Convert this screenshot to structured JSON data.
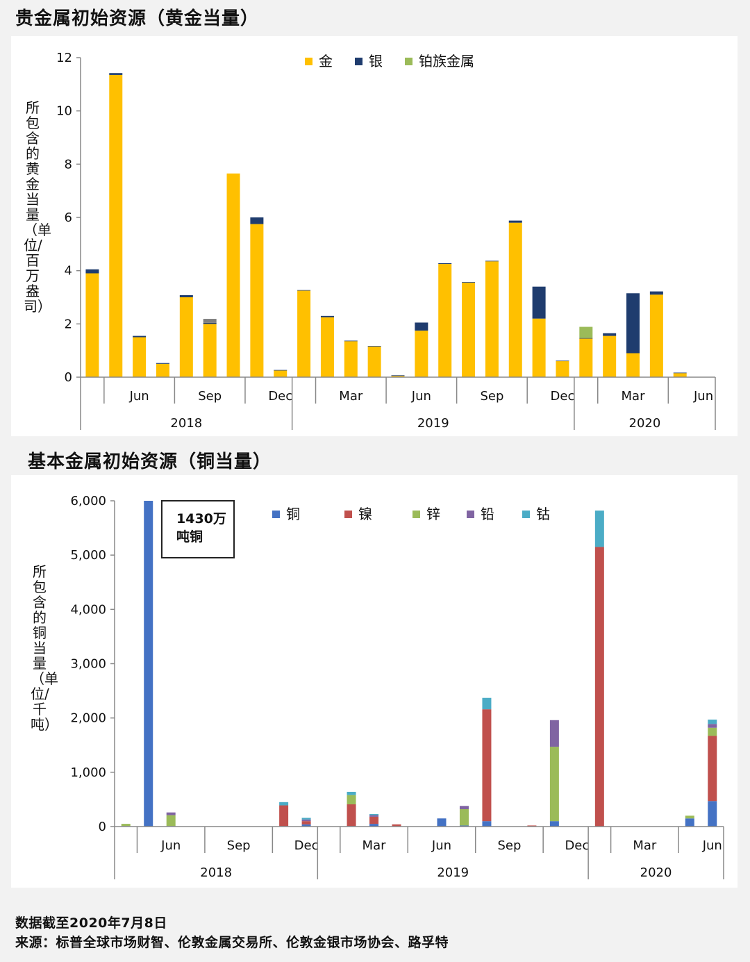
{
  "title_precious": "贵金属初始资源（黄金当量）",
  "title_base": "基本金属初始资源（铜当量）",
  "footer_date": "数据截至2020年7月8日",
  "footer_source": "来源：标普全球市场财智、伦敦金属交易所、伦敦金银市场协会、路孚特",
  "annotation": {
    "line1": "1430万",
    "line2": "吨铜"
  },
  "chart_data": [
    {
      "type": "bar",
      "stacked": true,
      "title": "贵金属初始资源（黄金当量）",
      "ylabel": "所包含的黄金当量（单位/百万盎司）",
      "ylim": [
        0,
        12
      ],
      "yticks": [
        0,
        2,
        4,
        6,
        8,
        10,
        12
      ],
      "grid": false,
      "legend_position": "top",
      "month_labels": [
        "Jun",
        "Sep",
        "Dec",
        "Mar",
        "Jun",
        "Sep",
        "Dec",
        "Mar",
        "Jun"
      ],
      "year_labels": [
        "2018",
        "2019",
        "2020"
      ],
      "categories": [
        "2018-04",
        "2018-05",
        "2018-06",
        "2018-07",
        "2018-08",
        "2018-09",
        "2018-10",
        "2018-11",
        "2018-12",
        "2019-01",
        "2019-02",
        "2019-03",
        "2019-04",
        "2019-05",
        "2019-06",
        "2019-07",
        "2019-08",
        "2019-09",
        "2019-10",
        "2019-11",
        "2019-12",
        "2020-01",
        "2020-02",
        "2020-03",
        "2020-04",
        "2020-05",
        "2020-06"
      ],
      "series": [
        {
          "name": "金",
          "color": "#FFC000",
          "values": [
            3.9,
            11.35,
            1.5,
            0.5,
            3.0,
            2.0,
            7.65,
            5.75,
            0.25,
            3.25,
            2.25,
            1.35,
            1.15,
            0.05,
            1.75,
            4.25,
            3.55,
            4.35,
            5.8,
            2.2,
            0.6,
            1.45,
            1.55,
            0.9,
            3.1,
            0.15,
            0
          ]
        },
        {
          "name": "银",
          "color": "#1F3C6E",
          "values": [
            0.15,
            0.07,
            0.05,
            0.03,
            0.08,
            0.04,
            0,
            0.25,
            0.02,
            0.02,
            0.05,
            0.02,
            0.02,
            0.02,
            0.3,
            0.03,
            0.02,
            0.02,
            0.08,
            1.2,
            0.02,
            0.02,
            0.1,
            2.25,
            0.12,
            0.02,
            0
          ]
        },
        {
          "name": "铂族金属",
          "color": "#9BBB59",
          "values": [
            0,
            0,
            0,
            0,
            0,
            0,
            0,
            0,
            0,
            0,
            0,
            0,
            0,
            0,
            0,
            0,
            0,
            0,
            0,
            0,
            0,
            0.42,
            0,
            0,
            0,
            0,
            0
          ]
        },
        {
          "name": "",
          "color": "#7F7F7F",
          "values": [
            0,
            0,
            0,
            0,
            0,
            0.15,
            0,
            0,
            0,
            0,
            0,
            0,
            0,
            0,
            0,
            0,
            0,
            0,
            0,
            0,
            0,
            0,
            0,
            0,
            0,
            0,
            0
          ]
        }
      ]
    },
    {
      "type": "bar",
      "stacked": true,
      "title": "基本金属初始资源（铜当量）",
      "ylabel": "所包含的铜当量（单位/千吨）",
      "ylim": [
        0,
        6000
      ],
      "yticks": [
        0,
        1000,
        2000,
        3000,
        4000,
        5000,
        6000
      ],
      "ytick_labels": [
        "0",
        "1,000",
        "2,000",
        "3,000",
        "4,000",
        "5,000",
        "6,000"
      ],
      "grid": false,
      "legend_position": "top",
      "month_labels": [
        "Jun",
        "Sep",
        "Dec",
        "Mar",
        "Jun",
        "Sep",
        "Dec",
        "Mar",
        "Jun"
      ],
      "year_labels": [
        "2018",
        "2019",
        "2020"
      ],
      "categories": [
        "2018-04",
        "2018-05",
        "2018-06",
        "2018-07",
        "2018-08",
        "2018-09",
        "2018-10",
        "2018-11",
        "2018-12",
        "2019-01",
        "2019-02",
        "2019-03",
        "2019-04",
        "2019-05",
        "2019-06",
        "2019-07",
        "2019-08",
        "2019-09",
        "2019-10",
        "2019-11",
        "2019-12",
        "2020-01",
        "2020-02",
        "2020-03",
        "2020-04",
        "2020-05",
        "2020-06"
      ],
      "series": [
        {
          "name": "铜",
          "color": "#4472C4",
          "values": [
            10,
            6000,
            10,
            0,
            0,
            0,
            0,
            10,
            40,
            0,
            10,
            50,
            0,
            0,
            150,
            20,
            100,
            0,
            0,
            100,
            0,
            0,
            0,
            0,
            0,
            150,
            470
          ]
        },
        {
          "name": "镍",
          "color": "#C0504D",
          "values": [
            0,
            0,
            0,
            0,
            0,
            0,
            0,
            380,
            60,
            0,
            400,
            130,
            40,
            0,
            0,
            0,
            2060,
            0,
            20,
            0,
            0,
            5150,
            0,
            0,
            0,
            0,
            1200
          ]
        },
        {
          "name": "锌",
          "color": "#9BBB59",
          "values": [
            40,
            0,
            200,
            0,
            0,
            0,
            0,
            0,
            0,
            0,
            170,
            0,
            0,
            0,
            0,
            300,
            0,
            0,
            0,
            1370,
            0,
            0,
            0,
            0,
            0,
            50,
            150
          ]
        },
        {
          "name": "铅",
          "color": "#8064A2",
          "values": [
            0,
            0,
            50,
            0,
            0,
            0,
            0,
            0,
            30,
            0,
            0,
            30,
            0,
            0,
            0,
            60,
            0,
            0,
            0,
            490,
            0,
            0,
            0,
            0,
            0,
            0,
            70
          ]
        },
        {
          "name": "钴",
          "color": "#4BACC6",
          "values": [
            0,
            0,
            0,
            0,
            0,
            0,
            0,
            60,
            30,
            0,
            60,
            20,
            0,
            0,
            0,
            0,
            210,
            0,
            0,
            0,
            0,
            670,
            0,
            0,
            0,
            0,
            80
          ]
        }
      ]
    }
  ]
}
